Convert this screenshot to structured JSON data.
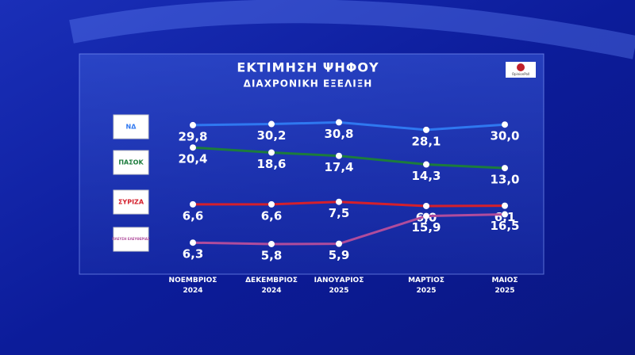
{
  "chart_data": {
    "type": "line",
    "title": "ΕΚΤΙΜΗΣΗ ΨΗΦΟΥ",
    "subtitle": "ΔΙΑΧΡΟΝΙΚΗ ΕΞΕΛΙΞΗ",
    "source": "OpinionPoll",
    "categories": [
      "ΝΟΕΜΒΡΙΟΣ 2024",
      "ΔΕΚΕΜΒΡΙΟΣ 2024",
      "ΙΑΝΟΥΑΡΙΟΣ 2025",
      "ΜΑΡΤΙΟΣ 2025",
      "ΜΑΙΟΣ 2025"
    ],
    "series": [
      {
        "name": "ΝΔ",
        "color": "#2f78f0",
        "values": [
          29.8,
          30.2,
          30.8,
          28.1,
          30.0
        ],
        "value_labels": [
          "29,8",
          "30,2",
          "30,8",
          "28,1",
          "30,0"
        ]
      },
      {
        "name": "ΠΑΣΟΚ",
        "color": "#1c7c3c",
        "values": [
          20.4,
          18.6,
          17.4,
          14.3,
          13.0
        ],
        "value_labels": [
          "20,4",
          "18,6",
          "17,4",
          "14,3",
          "13,0"
        ]
      },
      {
        "name": "ΣΥΡΙΖΑ",
        "color": "#d4202c",
        "values": [
          6.6,
          6.6,
          7.5,
          6.0,
          6.1
        ],
        "value_labels": [
          "6,6",
          "6,6",
          "7,5",
          "6,0",
          "6,1"
        ]
      },
      {
        "name": "ΠΛΕΥΣΗ ΕΛΕΥΘΕΡΙΑΣ",
        "color": "#b04c9c",
        "values": [
          6.3,
          5.8,
          5.9,
          15.9,
          16.5
        ],
        "value_labels": [
          "6,3",
          "5,8",
          "5,9",
          "15,9",
          "16,5"
        ]
      }
    ]
  }
}
